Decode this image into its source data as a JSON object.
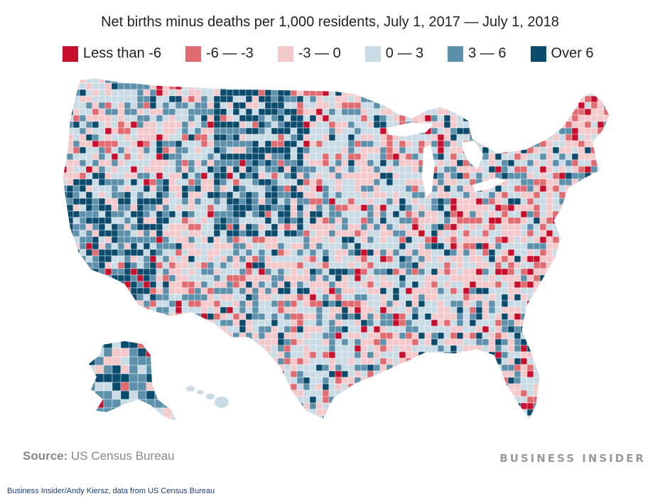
{
  "title": "Net births minus deaths per 1,000 residents, July 1, 2017 — July 1, 2018",
  "legend": [
    {
      "label": "Less than -6",
      "color": "#c8102e"
    },
    {
      "label": "-6 — -3",
      "color": "#e06c72"
    },
    {
      "label": "-3 — 0",
      "color": "#f4c9cb"
    },
    {
      "label": "0 — 3",
      "color": "#c9dbe4"
    },
    {
      "label": "3 — 6",
      "color": "#5d90ab"
    },
    {
      "label": "Over 6",
      "color": "#0b4b6c"
    }
  ],
  "source": {
    "label": "Source:",
    "text": "US Census Bureau"
  },
  "brand": "BUSINESS INSIDER",
  "credit": "Business Insider/Andy Kiersz, data from US Census Bureau"
}
